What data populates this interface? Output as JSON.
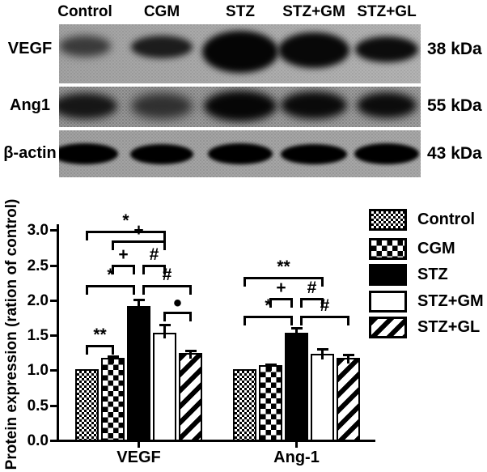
{
  "blot": {
    "column_labels": [
      "Control",
      "CGM",
      "STZ",
      "STZ+GM",
      "STZ+GL"
    ],
    "rows": [
      {
        "protein": "VEGF",
        "weight": "38 kDa",
        "band_intensities": [
          "medium",
          "dark",
          "very dark",
          "very dark",
          "dark"
        ]
      },
      {
        "protein": "Ang1",
        "weight": "55 kDa",
        "band_intensities": [
          "dark",
          "medium",
          "very dark",
          "dark",
          "dark"
        ]
      },
      {
        "protein": "β-actin",
        "weight": "43 kDa",
        "band_intensities": [
          "dark",
          "dark",
          "dark",
          "dark",
          "dark"
        ]
      }
    ]
  },
  "chart_data": {
    "type": "bar",
    "categories": [
      "VEGF",
      "Ang-1"
    ],
    "series": [
      {
        "name": "Control",
        "pattern": "fine-check",
        "values": [
          1.0,
          1.0
        ],
        "errors": [
          0,
          0
        ]
      },
      {
        "name": "CGM",
        "pattern": "check",
        "values": [
          1.17,
          1.06
        ],
        "errors": [
          0.03,
          0.03
        ]
      },
      {
        "name": "STZ",
        "pattern": "solid",
        "values": [
          1.9,
          1.53
        ],
        "errors": [
          0.11,
          0.07
        ]
      },
      {
        "name": "STZ+GM",
        "pattern": "open",
        "values": [
          1.53,
          1.22
        ],
        "errors": [
          0.12,
          0.09
        ]
      },
      {
        "name": "STZ+GL",
        "pattern": "diag",
        "values": [
          1.23,
          1.17
        ],
        "errors": [
          0.05,
          0.05
        ]
      }
    ],
    "ylabel": "Protein expression (ration of control)",
    "ylim": [
      0,
      3.0
    ],
    "yticks": [
      "0.0",
      "0.5",
      "1.0",
      "1.5",
      "2.0",
      "2.5",
      "3.0"
    ],
    "legend_position": "right",
    "grid": false,
    "significance": [
      {
        "group": 0,
        "from": 0,
        "to": 3,
        "y": 2.98,
        "label": "*"
      },
      {
        "group": 0,
        "from": 1,
        "to": 3,
        "y": 2.84,
        "label": "+"
      },
      {
        "group": 0,
        "from": 1,
        "to": 2,
        "y": 2.49,
        "label": "+",
        "trimEnd": true
      },
      {
        "group": 0,
        "from": 2,
        "to": 3,
        "y": 2.49,
        "label": "#",
        "trimStart": true
      },
      {
        "group": 0,
        "from": 0,
        "to": 2,
        "y": 2.21,
        "label": "*",
        "trimEnd": true
      },
      {
        "group": 0,
        "from": 2,
        "to": 4,
        "y": 2.21,
        "label": "#",
        "trimStart": true
      },
      {
        "group": 0,
        "from": 3,
        "to": 4,
        "y": 1.82,
        "label": "•"
      },
      {
        "group": 0,
        "from": 0,
        "to": 1,
        "y": 1.35,
        "label": "**"
      },
      {
        "group": 1,
        "from": 0,
        "to": 3,
        "y": 2.32,
        "label": "**"
      },
      {
        "group": 1,
        "from": 1,
        "to": 2,
        "y": 2.02,
        "label": "+",
        "trimEnd": true
      },
      {
        "group": 1,
        "from": 2,
        "to": 3,
        "y": 2.02,
        "label": "#",
        "trimStart": true
      },
      {
        "group": 1,
        "from": 0,
        "to": 2,
        "y": 1.77,
        "label": "*",
        "trimEnd": true
      },
      {
        "group": 1,
        "from": 2,
        "to": 4,
        "y": 1.77,
        "label": "#",
        "trimStart": true
      }
    ]
  }
}
